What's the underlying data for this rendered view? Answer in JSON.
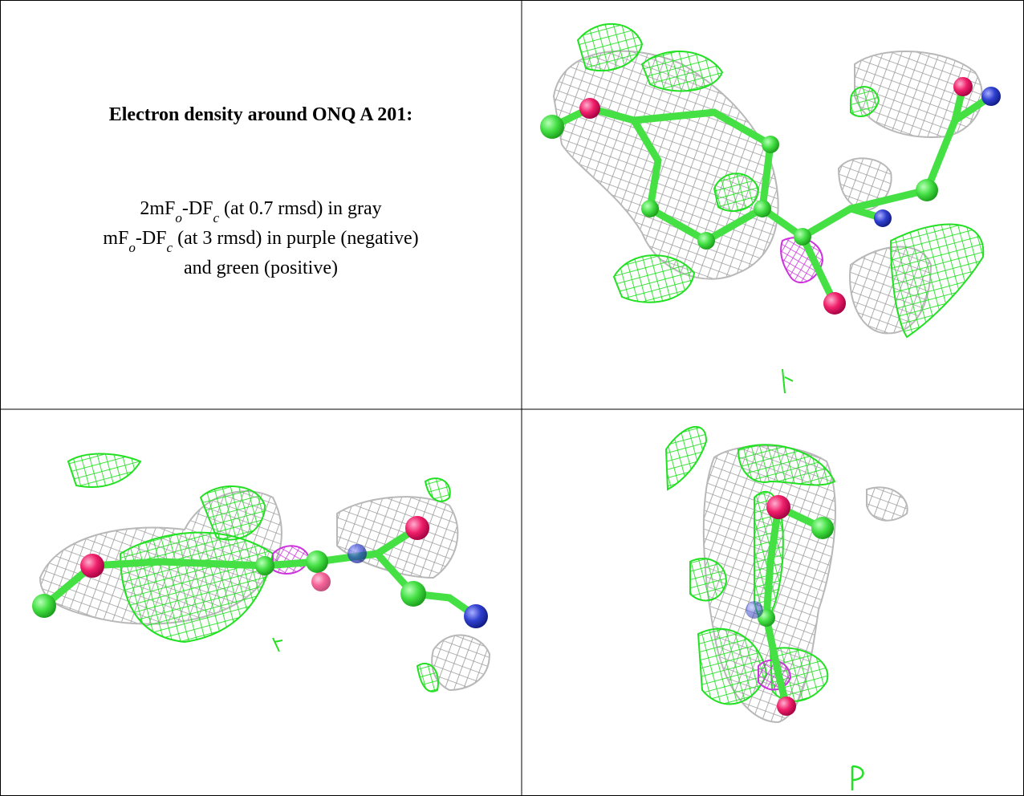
{
  "caption": {
    "title": "Electron density around ONQ A 201:",
    "lines": [
      [
        "2mF",
        "o",
        "-DF",
        "c",
        " (at 0.7 rmsd) in gray"
      ],
      [
        "mF",
        "o",
        "-DF",
        "c",
        " (at 3 rmsd) in purple (negative)"
      ],
      [
        "and green (positive)"
      ]
    ]
  }
}
